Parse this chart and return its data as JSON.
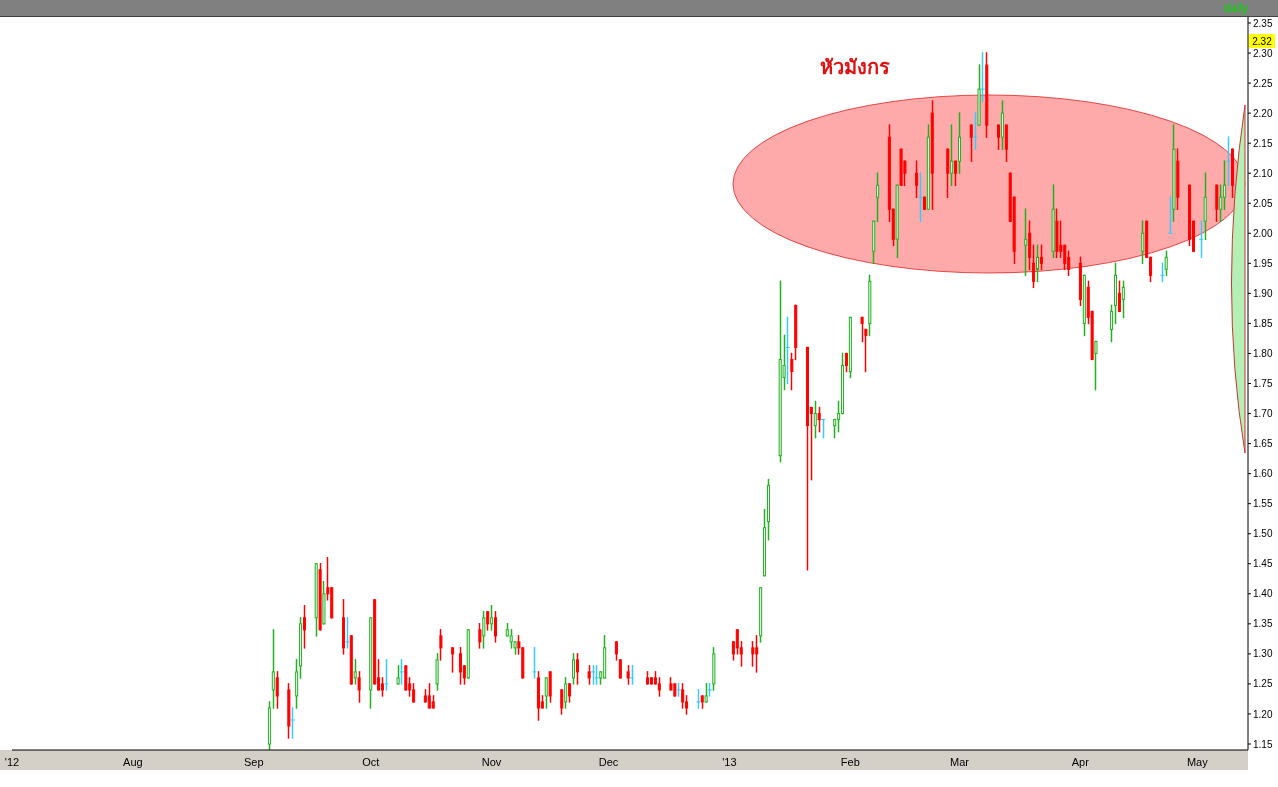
{
  "chart_data": {
    "type": "candlestick",
    "subtitle": "daily",
    "xlim": [
      "2012-07-01",
      "2013-05-14"
    ],
    "xticks": [
      {
        "value": "2012-07-01",
        "label": "'12"
      },
      {
        "value": "2012-08-01",
        "label": "Aug"
      },
      {
        "value": "2012-09-01",
        "label": "Sep"
      },
      {
        "value": "2012-10-01",
        "label": "Oct"
      },
      {
        "value": "2012-11-01",
        "label": "Nov"
      },
      {
        "value": "2012-12-01",
        "label": "Dec"
      },
      {
        "value": "2013-01-01",
        "label": "'13"
      },
      {
        "value": "2013-02-01",
        "label": "Feb"
      },
      {
        "value": "2013-03-01",
        "label": "Mar"
      },
      {
        "value": "2013-04-01",
        "label": "Apr"
      },
      {
        "value": "2013-05-01",
        "label": "May"
      }
    ],
    "ylim": [
      1.14,
      2.36
    ],
    "yticks": [
      {
        "value": 1.15,
        "label": "1.15"
      },
      {
        "value": 1.2,
        "label": "1.20"
      },
      {
        "value": 1.25,
        "label": "1.25"
      },
      {
        "value": 1.3,
        "label": "1.30"
      },
      {
        "value": 1.35,
        "label": "1.35"
      },
      {
        "value": 1.4,
        "label": "1.40"
      },
      {
        "value": 1.45,
        "label": "1.45"
      },
      {
        "value": 1.5,
        "label": "1.50"
      },
      {
        "value": 1.55,
        "label": "1.55"
      },
      {
        "value": 1.6,
        "label": "1.60"
      },
      {
        "value": 1.65,
        "label": "1.65"
      },
      {
        "value": 1.7,
        "label": "1.70"
      },
      {
        "value": 1.75,
        "label": "1.75"
      },
      {
        "value": 1.8,
        "label": "1.80"
      },
      {
        "value": 1.85,
        "label": "1.85"
      },
      {
        "value": 1.9,
        "label": "1.90"
      },
      {
        "value": 1.95,
        "label": "1.95"
      },
      {
        "value": 2.0,
        "label": "2.00"
      },
      {
        "value": 2.05,
        "label": "2.05"
      },
      {
        "value": 2.1,
        "label": "2.10"
      },
      {
        "value": 2.15,
        "label": "2.15"
      },
      {
        "value": 2.2,
        "label": "2.20"
      },
      {
        "value": 2.25,
        "label": "2.25"
      },
      {
        "value": 2.3,
        "label": "2.30"
      },
      {
        "value": 2.35,
        "label": "2.35"
      }
    ],
    "annotations": [
      "หัวมังกร",
      {
        "text": "2.32",
        "y": 2.32
      }
    ],
    "x": [
      "2012-09-05",
      "2012-09-06",
      "2012-09-07",
      "2012-09-10",
      "2012-09-11",
      "2012-09-12",
      "2012-09-13",
      "2012-09-14",
      "2012-09-17",
      "2012-09-18",
      "2012-09-19",
      "2012-09-20",
      "2012-09-21",
      "2012-09-24",
      "2012-09-25",
      "2012-09-26",
      "2012-09-27",
      "2012-09-28",
      "2012-10-01",
      "2012-10-02",
      "2012-10-03",
      "2012-10-04",
      "2012-10-05",
      "2012-10-08",
      "2012-10-09",
      "2012-10-10",
      "2012-10-11",
      "2012-10-12",
      "2012-10-15",
      "2012-10-16",
      "2012-10-17",
      "2012-10-18",
      "2012-10-19",
      "2012-10-22",
      "2012-10-24",
      "2012-10-25",
      "2012-10-26",
      "2012-10-29",
      "2012-10-30",
      "2012-10-31",
      "2012-11-01",
      "2012-11-02",
      "2012-11-05",
      "2012-11-06",
      "2012-11-07",
      "2012-11-08",
      "2012-11-09",
      "2012-11-12",
      "2012-11-13",
      "2012-11-14",
      "2012-11-15",
      "2012-11-16",
      "2012-11-19",
      "2012-11-20",
      "2012-11-21",
      "2012-11-22",
      "2012-11-23",
      "2012-11-26",
      "2012-11-27",
      "2012-11-28",
      "2012-11-29",
      "2012-11-30",
      "2012-12-03",
      "2012-12-04",
      "2012-12-06",
      "2012-12-07",
      "2012-12-11",
      "2012-12-12",
      "2012-12-13",
      "2012-12-14",
      "2012-12-17",
      "2012-12-18",
      "2012-12-19",
      "2012-12-20",
      "2012-12-21",
      "2012-12-24",
      "2012-12-25",
      "2012-12-26",
      "2012-12-27",
      "2012-12-28",
      "2013-01-02",
      "2013-01-03",
      "2013-01-04",
      "2013-01-07",
      "2013-01-08",
      "2013-01-09",
      "2013-01-10",
      "2013-01-11",
      "2013-01-14",
      "2013-01-15",
      "2013-01-16",
      "2013-01-17",
      "2013-01-18",
      "2013-01-21",
      "2013-01-22",
      "2013-01-23",
      "2013-01-24",
      "2013-01-25",
      "2013-01-28",
      "2013-01-29",
      "2013-01-30",
      "2013-01-31",
      "2013-02-01",
      "2013-02-04",
      "2013-02-05",
      "2013-02-06",
      "2013-02-07",
      "2013-02-08",
      "2013-02-11",
      "2013-02-12",
      "2013-02-13",
      "2013-02-14",
      "2013-02-15",
      "2013-02-18",
      "2013-02-19",
      "2013-02-20",
      "2013-02-21",
      "2013-02-22",
      "2013-02-26",
      "2013-02-27",
      "2013-02-28",
      "2013-03-01",
      "2013-03-04",
      "2013-03-05",
      "2013-03-06",
      "2013-03-07",
      "2013-03-08",
      "2013-03-11",
      "2013-03-12",
      "2013-03-13",
      "2013-03-14",
      "2013-03-15",
      "2013-03-18",
      "2013-03-19",
      "2013-03-20",
      "2013-03-21",
      "2013-03-22",
      "2013-03-25",
      "2013-03-26",
      "2013-03-27",
      "2013-03-28",
      "2013-03-29",
      "2013-04-01",
      "2013-04-02",
      "2013-04-03",
      "2013-04-04",
      "2013-04-05",
      "2013-04-09",
      "2013-04-10",
      "2013-04-11",
      "2013-04-12",
      "2013-04-17",
      "2013-04-18",
      "2013-04-19",
      "2013-04-22",
      "2013-04-23",
      "2013-04-24",
      "2013-04-25",
      "2013-04-26",
      "2013-04-29",
      "2013-04-30",
      "2013-05-02",
      "2013-05-03",
      "2013-05-06",
      "2013-05-07",
      "2013-05-08",
      "2013-05-09",
      "2013-05-10"
    ],
    "ohlc": [
      [
        1.15,
        1.22,
        1.14,
        1.21
      ],
      [
        1.24,
        1.34,
        1.21,
        1.27
      ],
      [
        1.26,
        1.27,
        1.21,
        1.23
      ],
      [
        1.24,
        1.25,
        1.16,
        1.18
      ],
      [
        1.19,
        1.21,
        1.16,
        1.19
      ],
      [
        1.23,
        1.29,
        1.21,
        1.27
      ],
      [
        1.28,
        1.36,
        1.26,
        1.35
      ],
      [
        1.36,
        1.38,
        1.31,
        1.34
      ],
      [
        1.36,
        1.45,
        1.33,
        1.45
      ],
      [
        1.44,
        1.45,
        1.34,
        1.34
      ],
      [
        1.35,
        1.42,
        1.35,
        1.4
      ],
      [
        1.41,
        1.46,
        1.39,
        1.4
      ],
      [
        1.41,
        1.41,
        1.36,
        1.36
      ],
      [
        1.36,
        1.39,
        1.3,
        1.31
      ],
      [
        1.32,
        1.36,
        1.31,
        1.32
      ],
      [
        1.33,
        1.33,
        1.25,
        1.25
      ],
      [
        1.26,
        1.29,
        1.25,
        1.27
      ],
      [
        1.26,
        1.27,
        1.22,
        1.24
      ],
      [
        1.24,
        1.36,
        1.21,
        1.36
      ],
      [
        1.39,
        1.39,
        1.25,
        1.25
      ],
      [
        1.26,
        1.29,
        1.24,
        1.24
      ],
      [
        1.25,
        1.26,
        1.23,
        1.24
      ],
      [
        1.25,
        1.29,
        1.24,
        1.25
      ],
      [
        1.25,
        1.28,
        1.25,
        1.26
      ],
      [
        1.27,
        1.29,
        1.25,
        1.27
      ],
      [
        1.28,
        1.28,
        1.24,
        1.24
      ],
      [
        1.25,
        1.26,
        1.23,
        1.24
      ],
      [
        1.24,
        1.25,
        1.22,
        1.22
      ],
      [
        1.23,
        1.24,
        1.22,
        1.22
      ],
      [
        1.23,
        1.25,
        1.21,
        1.21
      ],
      [
        1.22,
        1.23,
        1.21,
        1.21
      ],
      [
        1.25,
        1.3,
        1.24,
        1.29
      ],
      [
        1.33,
        1.34,
        1.29,
        1.31
      ],
      [
        1.31,
        1.31,
        1.27,
        1.3
      ],
      [
        1.3,
        1.31,
        1.25,
        1.27
      ],
      [
        1.28,
        1.28,
        1.25,
        1.26
      ],
      [
        1.26,
        1.34,
        1.26,
        1.34
      ],
      [
        1.34,
        1.35,
        1.31,
        1.32
      ],
      [
        1.33,
        1.37,
        1.31,
        1.36
      ],
      [
        1.37,
        1.37,
        1.34,
        1.35
      ],
      [
        1.35,
        1.38,
        1.34,
        1.36
      ],
      [
        1.36,
        1.37,
        1.32,
        1.33
      ],
      [
        1.33,
        1.35,
        1.33,
        1.34
      ],
      [
        1.32,
        1.34,
        1.31,
        1.33
      ],
      [
        1.31,
        1.32,
        1.3,
        1.32
      ],
      [
        1.32,
        1.33,
        1.3,
        1.31
      ],
      [
        1.31,
        1.31,
        1.26,
        1.26
      ],
      [
        1.27,
        1.31,
        1.26,
        1.27
      ],
      [
        1.26,
        1.27,
        1.19,
        1.21
      ],
      [
        1.22,
        1.23,
        1.21,
        1.21
      ],
      [
        1.23,
        1.26,
        1.21,
        1.26
      ],
      [
        1.27,
        1.27,
        1.22,
        1.23
      ],
      [
        1.24,
        1.24,
        1.2,
        1.21
      ],
      [
        1.22,
        1.26,
        1.21,
        1.25
      ],
      [
        1.25,
        1.25,
        1.22,
        1.23
      ],
      [
        1.26,
        1.3,
        1.25,
        1.29
      ],
      [
        1.29,
        1.3,
        1.25,
        1.27
      ],
      [
        1.27,
        1.28,
        1.25,
        1.26
      ],
      [
        1.27,
        1.28,
        1.25,
        1.27
      ],
      [
        1.26,
        1.28,
        1.25,
        1.26
      ],
      [
        1.26,
        1.27,
        1.25,
        1.27
      ],
      [
        1.26,
        1.33,
        1.26,
        1.31
      ],
      [
        1.32,
        1.32,
        1.29,
        1.3
      ],
      [
        1.29,
        1.29,
        1.26,
        1.26
      ],
      [
        1.27,
        1.28,
        1.25,
        1.26
      ],
      [
        1.26,
        1.28,
        1.25,
        1.26
      ],
      [
        1.26,
        1.27,
        1.25,
        1.25
      ],
      [
        1.26,
        1.26,
        1.25,
        1.25
      ],
      [
        1.26,
        1.27,
        1.25,
        1.25
      ],
      [
        1.25,
        1.26,
        1.23,
        1.24
      ],
      [
        1.25,
        1.26,
        1.24,
        1.24
      ],
      [
        1.25,
        1.25,
        1.23,
        1.23
      ],
      [
        1.24,
        1.25,
        1.23,
        1.24
      ],
      [
        1.24,
        1.25,
        1.21,
        1.22
      ],
      [
        1.22,
        1.23,
        1.2,
        1.21
      ],
      [
        1.22,
        1.24,
        1.21,
        1.22
      ],
      [
        1.23,
        1.23,
        1.21,
        1.22
      ],
      [
        1.22,
        1.25,
        1.22,
        1.23
      ],
      [
        1.24,
        1.25,
        1.23,
        1.24
      ],
      [
        1.25,
        1.31,
        1.24,
        1.3
      ],
      [
        1.32,
        1.32,
        1.29,
        1.3
      ],
      [
        1.34,
        1.34,
        1.3,
        1.31
      ],
      [
        1.31,
        1.32,
        1.28,
        1.3
      ],
      [
        1.31,
        1.32,
        1.28,
        1.3
      ],
      [
        1.31,
        1.33,
        1.27,
        1.3
      ],
      [
        1.33,
        1.41,
        1.32,
        1.41
      ],
      [
        1.43,
        1.54,
        1.43,
        1.51
      ],
      [
        1.52,
        1.59,
        1.49,
        1.58
      ],
      [
        1.63,
        1.92,
        1.62,
        1.79
      ],
      [
        1.76,
        1.83,
        1.74,
        1.78
      ],
      [
        1.81,
        1.86,
        1.75,
        1.81
      ],
      [
        1.79,
        1.8,
        1.74,
        1.77
      ],
      [
        1.88,
        1.88,
        1.79,
        1.81
      ],
      [
        1.81,
        1.81,
        1.44,
        1.68
      ],
      [
        1.71,
        1.71,
        1.59,
        1.7
      ],
      [
        1.68,
        1.72,
        1.66,
        1.7
      ],
      [
        1.7,
        1.71,
        1.67,
        1.69
      ],
      [
        1.69,
        1.69,
        1.66,
        1.69
      ],
      [
        1.68,
        1.69,
        1.66,
        1.69
      ],
      [
        1.69,
        1.72,
        1.67,
        1.7
      ],
      [
        1.7,
        1.8,
        1.7,
        1.78
      ],
      [
        1.8,
        1.8,
        1.77,
        1.78
      ],
      [
        1.77,
        1.86,
        1.76,
        1.86
      ],
      [
        1.86,
        1.86,
        1.82,
        1.85
      ],
      [
        1.84,
        1.84,
        1.77,
        1.83
      ],
      [
        1.85,
        1.93,
        1.83,
        1.92
      ],
      [
        1.97,
        2.02,
        1.95,
        2.02
      ],
      [
        2.06,
        2.1,
        2.02,
        2.08
      ],
      [
        2.16,
        2.18,
        2.02,
        2.04
      ],
      [
        2.04,
        2.04,
        1.98,
        1.99
      ],
      [
        1.99,
        2.08,
        1.96,
        2.08
      ],
      [
        2.14,
        2.14,
        2.08,
        2.08
      ],
      [
        2.12,
        2.12,
        2.08,
        2.1
      ],
      [
        2.1,
        2.12,
        2.06,
        2.08
      ],
      [
        2.06,
        2.1,
        2.02,
        2.06
      ],
      [
        2.06,
        2.06,
        2.04,
        2.04
      ],
      [
        2.04,
        2.18,
        2.04,
        2.16
      ],
      [
        2.2,
        2.22,
        2.04,
        2.1
      ],
      [
        2.14,
        2.14,
        2.06,
        2.1
      ],
      [
        2.1,
        2.18,
        2.08,
        2.12
      ],
      [
        2.12,
        2.12,
        2.08,
        2.1
      ],
      [
        2.12,
        2.2,
        2.1,
        2.16
      ],
      [
        2.18,
        2.18,
        2.12,
        2.16
      ],
      [
        2.16,
        2.2,
        2.14,
        2.16
      ],
      [
        2.18,
        2.28,
        2.18,
        2.24
      ],
      [
        2.24,
        2.3,
        2.22,
        2.24
      ],
      [
        2.28,
        2.3,
        2.16,
        2.18
      ],
      [
        2.18,
        2.18,
        2.14,
        2.16
      ],
      [
        2.16,
        2.22,
        2.14,
        2.2
      ],
      [
        2.18,
        2.18,
        2.12,
        2.14
      ],
      [
        2.1,
        2.1,
        2.02,
        2.02
      ],
      [
        2.06,
        2.06,
        1.95,
        1.97
      ],
      [
        1.98,
        2.04,
        1.93,
        1.99
      ],
      [
        2.0,
        2.02,
        1.94,
        1.96
      ],
      [
        1.95,
        1.98,
        1.91,
        1.92
      ],
      [
        1.94,
        1.98,
        1.92,
        1.96
      ],
      [
        1.96,
        1.98,
        1.94,
        1.95
      ],
      [
        1.97,
        2.08,
        1.96,
        2.04
      ],
      [
        2.02,
        2.04,
        1.96,
        1.97
      ],
      [
        1.98,
        2.02,
        1.96,
        1.97
      ],
      [
        1.98,
        1.98,
        1.94,
        1.95
      ],
      [
        1.96,
        1.97,
        1.93,
        1.94
      ],
      [
        1.95,
        1.96,
        1.88,
        1.89
      ],
      [
        1.85,
        1.93,
        1.83,
        1.93
      ],
      [
        1.91,
        1.92,
        1.85,
        1.86
      ],
      [
        1.87,
        1.87,
        1.79,
        1.79
      ],
      [
        1.8,
        1.82,
        1.74,
        1.82
      ],
      [
        1.84,
        1.88,
        1.82,
        1.87
      ],
      [
        1.88,
        1.95,
        1.85,
        1.93
      ],
      [
        1.9,
        1.92,
        1.87,
        1.87
      ],
      [
        1.89,
        1.92,
        1.86,
        1.91
      ],
      [
        1.97,
        2.02,
        1.95,
        2.0
      ],
      [
        2.02,
        2.02,
        1.96,
        1.96
      ],
      [
        1.96,
        1.96,
        1.92,
        1.93
      ],
      [
        1.93,
        1.95,
        1.92,
        1.93
      ],
      [
        1.94,
        1.97,
        1.93,
        1.96
      ],
      [
        2.0,
        2.06,
        2.0,
        2.0
      ],
      [
        2.04,
        2.18,
        2.02,
        2.14
      ],
      [
        2.12,
        2.14,
        2.04,
        2.06
      ],
      [
        2.08,
        2.08,
        1.98,
        1.99
      ],
      [
        2.02,
        2.02,
        1.97,
        1.97
      ],
      [
        1.99,
        2.02,
        1.96,
        1.99
      ],
      [
        2.02,
        2.1,
        1.99,
        2.06
      ],
      [
        2.08,
        2.08,
        2.02,
        2.04
      ],
      [
        2.04,
        2.08,
        2.02,
        2.06
      ],
      [
        2.06,
        2.12,
        2.04,
        2.08
      ],
      [
        2.12,
        2.16,
        2.08,
        2.12
      ],
      [
        2.14,
        2.14,
        2.06,
        2.08
      ]
    ],
    "colors": [
      "#20b020",
      "#20b020",
      "#ff0000",
      "#ff0000",
      "#33ccff",
      "#20b020",
      "#20b020",
      "#ff0000",
      "#20b020",
      "#ff0000",
      "#20b020",
      "#ff0000",
      "#ff0000",
      "#ff0000",
      "#33ccff",
      "#ff0000",
      "#20b020",
      "#ff0000",
      "#20b020",
      "#ff0000",
      "#ff0000",
      "#ff0000",
      "#33ccff",
      "#20b020",
      "#33ccff",
      "#ff0000",
      "#ff0000",
      "#ff0000",
      "#ff0000",
      "#ff0000",
      "#ff0000",
      "#20b020",
      "#ff0000",
      "#ff0000",
      "#ff0000",
      "#ff0000",
      "#20b020",
      "#ff0000",
      "#20b020",
      "#ff0000",
      "#20b020",
      "#ff0000",
      "#20b020",
      "#20b020",
      "#20b020",
      "#ff0000",
      "#ff0000",
      "#33ccff",
      "#ff0000",
      "#ff0000",
      "#20b020",
      "#ff0000",
      "#ff0000",
      "#20b020",
      "#ff0000",
      "#20b020",
      "#ff0000",
      "#ff0000",
      "#33ccff",
      "#33ccff",
      "#20b020",
      "#20b020",
      "#ff0000",
      "#ff0000",
      "#ff0000",
      "#33ccff",
      "#ff0000",
      "#ff0000",
      "#ff0000",
      "#ff0000",
      "#ff0000",
      "#ff0000",
      "#33ccff",
      "#ff0000",
      "#ff0000",
      "#33ccff",
      "#ff0000",
      "#20b020",
      "#33ccff",
      "#20b020",
      "#ff0000",
      "#ff0000",
      "#ff0000",
      "#ff0000",
      "#ff0000",
      "#20b020",
      "#20b020",
      "#20b020",
      "#20b020",
      "#20b020",
      "#33ccff",
      "#ff0000",
      "#ff0000",
      "#ff0000",
      "#ff0000",
      "#20b020",
      "#ff0000",
      "#33ccff",
      "#20b020",
      "#20b020",
      "#20b020",
      "#ff0000",
      "#20b020",
      "#ff0000",
      "#ff0000",
      "#20b020",
      "#20b020",
      "#20b020",
      "#ff0000",
      "#ff0000",
      "#20b020",
      "#ff0000",
      "#ff0000",
      "#ff0000",
      "#33ccff",
      "#ff0000",
      "#20b020",
      "#ff0000",
      "#ff0000",
      "#20b020",
      "#ff0000",
      "#20b020",
      "#ff0000",
      "#33ccff",
      "#20b020",
      "#33ccff",
      "#ff0000",
      "#ff0000",
      "#20b020",
      "#ff0000",
      "#ff0000",
      "#ff0000",
      "#20b020",
      "#ff0000",
      "#ff0000",
      "#20b020",
      "#ff0000",
      "#20b020",
      "#ff0000",
      "#ff0000",
      "#ff0000",
      "#ff0000",
      "#ff0000",
      "#20b020",
      "#ff0000",
      "#ff0000",
      "#20b020",
      "#20b020",
      "#20b020",
      "#ff0000",
      "#20b020",
      "#20b020",
      "#ff0000",
      "#ff0000",
      "#33ccff",
      "#20b020",
      "#33ccff",
      "#20b020",
      "#ff0000",
      "#ff0000",
      "#ff0000",
      "#33ccff",
      "#20b020",
      "#ff0000",
      "#20b020",
      "#20b020",
      "#33ccff",
      "#ff0000"
    ]
  }
}
